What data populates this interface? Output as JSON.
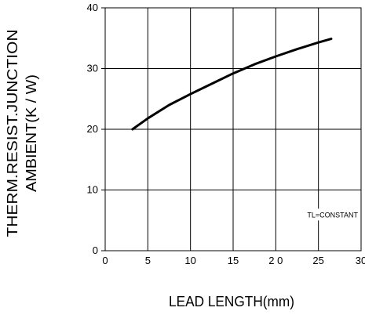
{
  "chart_data": {
    "type": "line",
    "title": "",
    "xlabel": "LEAD LENGTH(mm)",
    "ylabel_lines": [
      "THERM.RESIST.JUNCTION",
      "AMBIENT(K / W)"
    ],
    "xlim": [
      0,
      30
    ],
    "ylim": [
      0,
      40
    ],
    "x_ticks": [
      0,
      5,
      10,
      15,
      20,
      25,
      30
    ],
    "x_tick_labels": [
      "0",
      "5",
      "10",
      "15",
      "2 0",
      "25",
      "30"
    ],
    "y_ticks": [
      0,
      10,
      20,
      30,
      40
    ],
    "y_tick_labels": [
      "0",
      "10",
      "20",
      "30",
      "40"
    ],
    "grid": true,
    "annotation": "TL=CONSTANT",
    "series": [
      {
        "x": [
          3.2,
          5,
          7.5,
          10,
          12.5,
          15,
          17.5,
          20,
          22.5,
          25,
          26.5
        ],
        "y": [
          20,
          21.8,
          24,
          25.8,
          27.5,
          29.2,
          30.7,
          32,
          33.2,
          34.3,
          34.9
        ]
      }
    ]
  }
}
